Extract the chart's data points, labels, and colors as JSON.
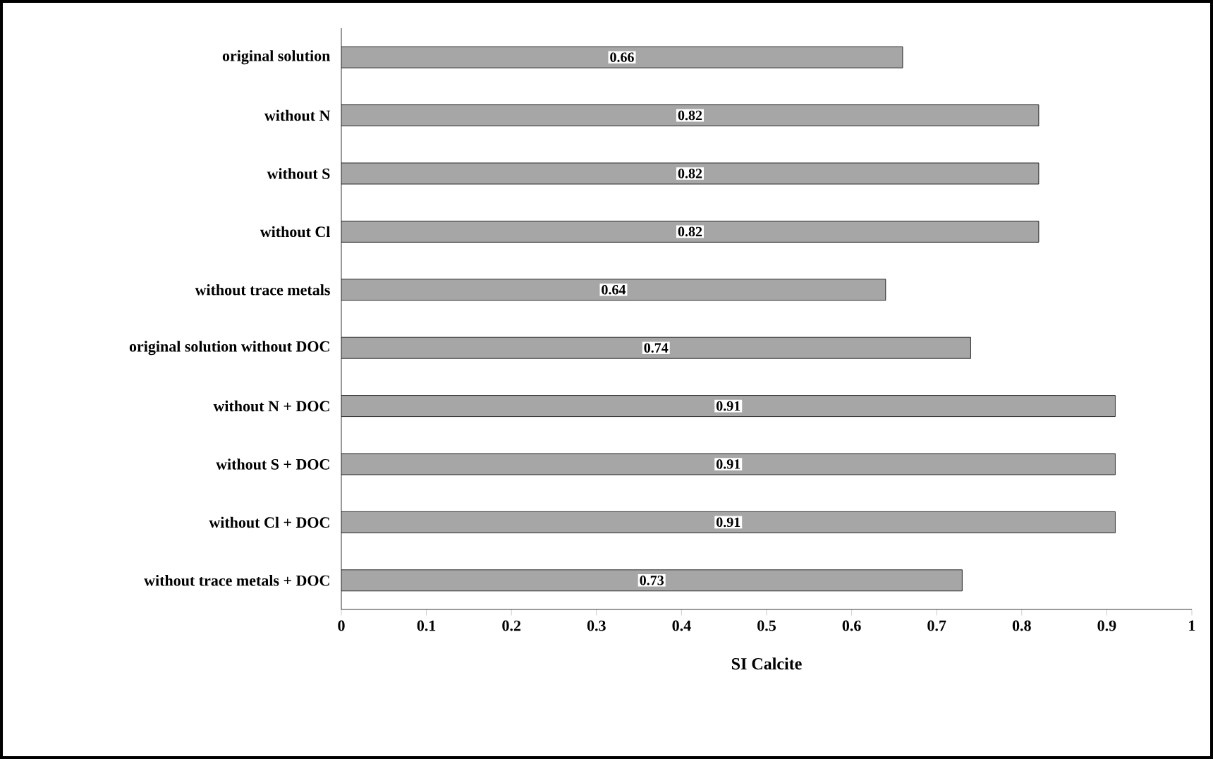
{
  "chart_data": {
    "type": "bar",
    "orientation": "horizontal",
    "xlabel": "SI Calcite",
    "categories": [
      "original solution",
      "without N",
      "without S",
      "without Cl",
      "without trace metals",
      "original solution without DOC",
      "without N + DOC",
      "without S + DOC",
      "without Cl + DOC",
      "without trace metals + DOC"
    ],
    "values": [
      0.66,
      0.82,
      0.82,
      0.82,
      0.64,
      0.74,
      0.91,
      0.91,
      0.91,
      0.73
    ],
    "color": "#a6a6a6",
    "data_labels": true,
    "grid": false,
    "xlim": [
      0,
      1
    ],
    "xticks": [
      0,
      0.1,
      0.2,
      0.3,
      0.4,
      0.5,
      0.6,
      0.7,
      0.8,
      0.9,
      1
    ]
  }
}
